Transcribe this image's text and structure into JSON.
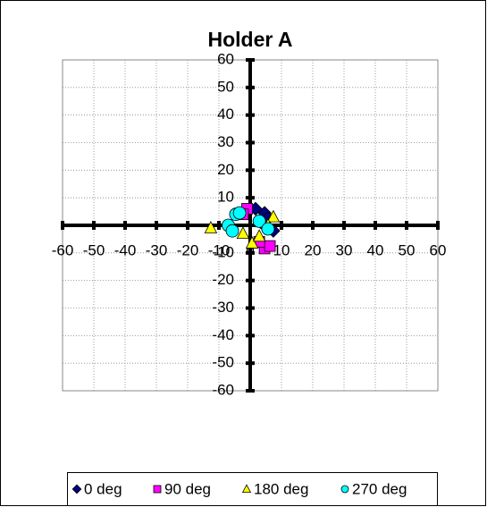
{
  "chart_data": {
    "type": "scatter",
    "title": "Holder A",
    "xlim": [
      -60,
      60
    ],
    "ylim": [
      -60,
      60
    ],
    "xticks": [
      -60,
      -50,
      -40,
      -30,
      -20,
      -10,
      0,
      10,
      20,
      30,
      40,
      50,
      60
    ],
    "yticks": [
      -60,
      -50,
      -40,
      -30,
      -20,
      -10,
      0,
      10,
      20,
      30,
      40,
      50,
      60
    ],
    "grid": true,
    "legend": "bottom",
    "series": [
      {
        "name": "0 deg",
        "color": "#000080",
        "marker": "diamond",
        "x": [
          1.7,
          4.6,
          5.7,
          7.4,
          3.5
        ],
        "y": [
          6,
          4.5,
          2.6,
          -2,
          1
        ]
      },
      {
        "name": "90 deg",
        "color": "#ff00ff",
        "marker": "square",
        "x": [
          -1,
          4.6,
          6.3,
          2.9,
          -2.3
        ],
        "y": [
          6,
          -8.4,
          -7.5,
          -6,
          4
        ]
      },
      {
        "name": "180 deg",
        "color": "#ffff00",
        "marker": "triangle",
        "x": [
          -12.6,
          -2.3,
          0.6,
          2.9,
          7.4,
          5.7
        ],
        "y": [
          -1,
          -3,
          -6.5,
          -4,
          3,
          0
        ]
      },
      {
        "name": "270 deg",
        "color": "#00ffff",
        "marker": "circle",
        "x": [
          -7,
          -4.6,
          -3.4,
          2.9,
          5.7,
          -5.7
        ],
        "y": [
          0,
          4,
          4.5,
          1.5,
          -1.3,
          -2
        ]
      }
    ]
  }
}
